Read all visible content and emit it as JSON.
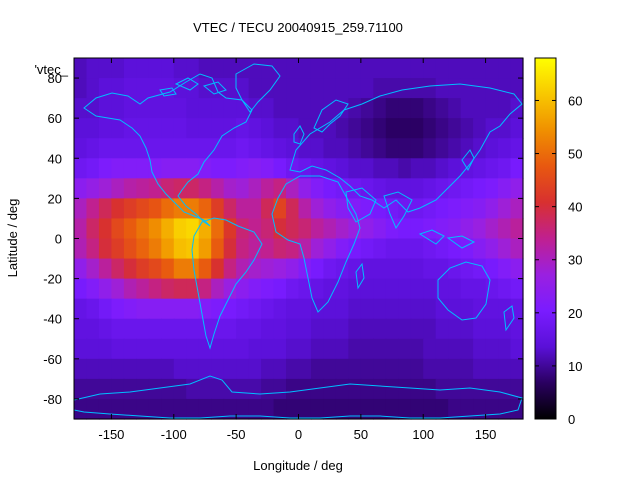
{
  "chart_data": {
    "type": "heatmap",
    "title": "VTEC / TECU 20040915_259.71100",
    "xlabel": "Longitude / deg",
    "ylabel": "Latitude / deg",
    "key_label": "'vtec_",
    "xlim": [
      -180,
      180
    ],
    "ylim": [
      -90,
      90
    ],
    "x_ticks": [
      -150,
      -100,
      -50,
      0,
      50,
      100,
      150
    ],
    "y_ticks": [
      -80,
      -60,
      -40,
      -20,
      0,
      20,
      40,
      60,
      80
    ],
    "colorbar": {
      "range": [
        0,
        68
      ],
      "ticks": [
        0,
        10,
        20,
        30,
        40,
        50,
        60
      ],
      "palette": [
        "#000000",
        "#2a0060",
        "#5a10d8",
        "#7a1cff",
        "#9a20e0",
        "#c02090",
        "#d83030",
        "#e85810",
        "#f09000",
        "#f8c800",
        "#ffff00"
      ]
    },
    "grid": {
      "lon_start": -180,
      "lat_start": 90,
      "cell_deg": 10,
      "rows": [
        [
          12,
          13,
          13,
          13,
          14,
          14,
          14,
          14,
          13,
          13,
          12,
          12,
          12,
          12,
          12,
          12,
          12,
          12,
          12,
          12,
          12,
          12,
          12,
          12,
          12,
          12,
          12,
          12,
          12,
          12,
          12,
          12,
          12,
          12,
          12,
          12
        ],
        [
          12,
          13,
          14,
          14,
          15,
          15,
          15,
          15,
          14,
          14,
          13,
          13,
          13,
          13,
          12,
          12,
          12,
          12,
          12,
          12,
          12,
          12,
          12,
          12,
          11,
          11,
          11,
          11,
          11,
          12,
          12,
          12,
          12,
          12,
          12,
          12
        ],
        [
          13,
          13,
          14,
          14,
          15,
          15,
          15,
          15,
          15,
          14,
          14,
          14,
          14,
          14,
          13,
          13,
          12,
          12,
          12,
          12,
          12,
          12,
          11,
          10,
          9,
          8,
          8,
          8,
          9,
          10,
          11,
          12,
          12,
          12,
          12,
          13
        ],
        [
          14,
          14,
          15,
          15,
          16,
          16,
          16,
          16,
          16,
          15,
          15,
          15,
          15,
          16,
          15,
          14,
          13,
          13,
          12,
          12,
          12,
          11,
          10,
          9,
          8,
          7,
          7,
          7,
          8,
          9,
          10,
          11,
          12,
          13,
          13,
          14
        ],
        [
          15,
          16,
          17,
          17,
          17,
          17,
          17,
          17,
          17,
          17,
          17,
          17,
          17,
          18,
          17,
          16,
          15,
          14,
          13,
          13,
          12,
          12,
          11,
          10,
          9,
          8,
          8,
          8,
          9,
          10,
          11,
          12,
          13,
          14,
          15,
          16
        ],
        [
          18,
          19,
          21,
          22,
          22,
          22,
          22,
          23,
          23,
          23,
          22,
          21,
          21,
          22,
          23,
          22,
          20,
          18,
          17,
          16,
          15,
          14,
          13,
          13,
          12,
          12,
          11,
          12,
          12,
          13,
          14,
          15,
          16,
          17,
          18,
          20
        ],
        [
          24,
          26,
          28,
          30,
          32,
          33,
          34,
          36,
          37,
          37,
          35,
          32,
          29,
          28,
          30,
          33,
          35,
          30,
          25,
          22,
          20,
          19,
          18,
          17,
          16,
          15,
          15,
          15,
          16,
          17,
          18,
          19,
          20,
          21,
          23,
          25
        ],
        [
          30,
          34,
          38,
          41,
          43,
          45,
          47,
          50,
          52,
          52,
          49,
          43,
          37,
          33,
          33,
          38,
          44,
          38,
          32,
          28,
          25,
          23,
          22,
          21,
          20,
          19,
          18,
          18,
          19,
          20,
          21,
          22,
          23,
          25,
          28,
          30
        ],
        [
          32,
          37,
          41,
          45,
          48,
          51,
          54,
          58,
          62,
          63,
          58,
          50,
          42,
          36,
          34,
          36,
          40,
          38,
          36,
          33,
          31,
          29,
          27,
          25,
          23,
          21,
          20,
          20,
          21,
          22,
          23,
          25,
          27,
          29,
          31,
          33
        ],
        [
          31,
          35,
          40,
          43,
          46,
          49,
          52,
          56,
          60,
          61,
          56,
          48,
          40,
          35,
          33,
          34,
          36,
          35,
          32,
          28,
          25,
          22,
          20,
          19,
          18,
          17,
          17,
          17,
          18,
          19,
          20,
          21,
          23,
          25,
          28,
          30
        ],
        [
          25,
          29,
          33,
          37,
          40,
          43,
          45,
          48,
          52,
          52,
          48,
          41,
          35,
          31,
          29,
          28,
          27,
          25,
          22,
          20,
          18,
          17,
          16,
          15,
          15,
          15,
          15,
          15,
          16,
          16,
          17,
          18,
          19,
          20,
          22,
          24
        ],
        [
          20,
          22,
          25,
          28,
          31,
          33,
          35,
          37,
          38,
          38,
          35,
          30,
          27,
          24,
          22,
          21,
          20,
          18,
          17,
          16,
          15,
          15,
          14,
          14,
          14,
          14,
          14,
          14,
          14,
          15,
          15,
          16,
          16,
          17,
          18,
          19
        ],
        [
          16,
          17,
          19,
          21,
          22,
          23,
          23,
          23,
          23,
          23,
          22,
          21,
          20,
          19,
          18,
          17,
          16,
          15,
          15,
          14,
          14,
          14,
          13,
          13,
          13,
          13,
          13,
          13,
          13,
          14,
          14,
          14,
          15,
          15,
          15,
          16
        ],
        [
          15,
          15,
          16,
          17,
          17,
          17,
          17,
          17,
          17,
          17,
          17,
          17,
          17,
          16,
          16,
          15,
          15,
          14,
          14,
          13,
          13,
          13,
          12,
          12,
          12,
          12,
          12,
          12,
          12,
          13,
          13,
          13,
          14,
          14,
          14,
          15
        ],
        [
          14,
          14,
          14,
          15,
          15,
          15,
          15,
          15,
          15,
          15,
          15,
          15,
          15,
          15,
          14,
          14,
          14,
          13,
          13,
          12,
          12,
          12,
          11,
          11,
          11,
          11,
          11,
          11,
          12,
          12,
          12,
          12,
          13,
          13,
          13,
          14
        ],
        [
          12,
          12,
          12,
          12,
          12,
          12,
          12,
          12,
          13,
          13,
          13,
          13,
          13,
          13,
          13,
          12,
          12,
          11,
          11,
          10,
          10,
          10,
          10,
          10,
          10,
          10,
          10,
          10,
          11,
          11,
          11,
          11,
          12,
          12,
          12,
          12
        ],
        [
          10,
          10,
          10,
          10,
          10,
          10,
          10,
          10,
          10,
          11,
          11,
          11,
          11,
          11,
          11,
          10,
          10,
          9,
          9,
          9,
          9,
          9,
          9,
          9,
          9,
          9,
          9,
          9,
          9,
          10,
          10,
          10,
          10,
          10,
          10,
          10
        ],
        [
          9,
          9,
          9,
          9,
          9,
          9,
          9,
          9,
          9,
          9,
          9,
          9,
          9,
          9,
          9,
          9,
          8,
          8,
          8,
          8,
          8,
          8,
          8,
          8,
          8,
          8,
          8,
          8,
          8,
          8,
          9,
          9,
          9,
          9,
          9,
          9
        ]
      ]
    }
  }
}
